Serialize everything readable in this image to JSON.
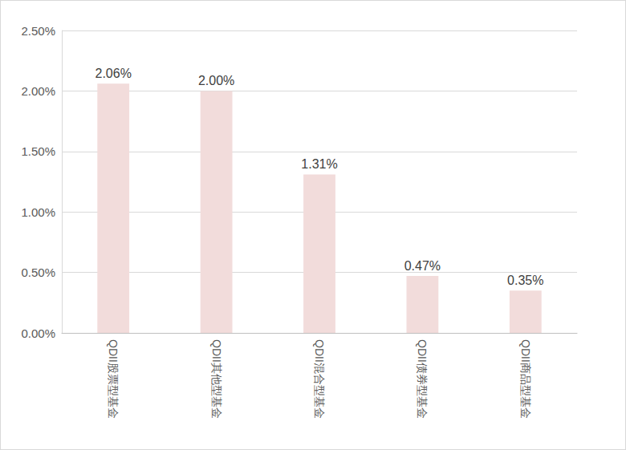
{
  "chart_data": {
    "type": "bar",
    "categories": [
      "QDII股票型基金",
      "QDII其他型基金",
      "QDII混合型基金",
      "QDII债券型基金",
      "QDII商品型基金"
    ],
    "values": [
      2.06,
      2.0,
      1.31,
      0.47,
      0.35
    ],
    "value_labels": [
      "2.06%",
      "2.00%",
      "1.31%",
      "0.47%",
      "0.35%"
    ],
    "color": "#f2dcdb",
    "ylim": [
      0,
      2.5
    ],
    "yticks": [
      {
        "value": 0,
        "label": "0.00%"
      },
      {
        "value": 0.5,
        "label": "0.50%"
      },
      {
        "value": 1,
        "label": "1.00%"
      },
      {
        "value": 1.5,
        "label": "1.50%"
      },
      {
        "value": 2,
        "label": "2.00%"
      },
      {
        "value": 2.5,
        "label": "2.50%"
      }
    ],
    "grid": true,
    "data_labels": true
  }
}
